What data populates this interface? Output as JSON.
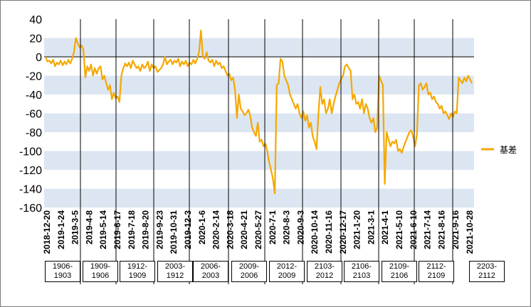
{
  "chart_data": {
    "type": "line",
    "title": "",
    "xlabel": "",
    "ylabel": "",
    "ylim": [
      -160,
      40
    ],
    "yticks": [
      40,
      20,
      0,
      -20,
      -40,
      -60,
      -80,
      -100,
      -120,
      -140,
      -160
    ],
    "grid": "alternating horizontal bands",
    "legend_position": "right",
    "x_tick_labels": [
      "2018-12-20",
      "2019-1-24",
      "2019-3-5",
      "2019-4-8",
      "2019-5-14",
      "2019-6-17",
      "2019-7-18",
      "2019-8-20",
      "2019-9-23",
      "2019-10-31",
      "2019-12-3",
      "2020-1-6",
      "2020-2-14",
      "2020-3-18",
      "2020-4-21",
      "2020-5-27",
      "2020-7-1",
      "2020-8-3",
      "2020-9-3",
      "2020-10-14",
      "2020-11-16",
      "2020-12-17",
      "2021-1-20",
      "2021-3-1",
      "2021-4-1",
      "2021-5-10",
      "2021-6-10",
      "2021-7-14",
      "2021-8-16",
      "2021-9-16",
      "2021-10-28"
    ],
    "contract_labels": [
      "1906-\n1903",
      "1909-\n1906",
      "1912-\n1909",
      "2003-\n1912",
      "2006-\n2003",
      "2009-\n2006",
      "2012-\n2009",
      "2103-\n2012",
      "2106-\n2103",
      "2109-\n2106",
      "2112-\n2109",
      "2203-\n2112"
    ],
    "series": [
      {
        "name": "基差",
        "color": "#F5A800",
        "values": [
          0,
          -5,
          -4,
          -7,
          -3,
          -10,
          -6,
          -8,
          -4,
          -9,
          -5,
          -8,
          -3,
          -7,
          -2,
          5,
          20,
          14,
          10,
          12,
          8,
          -22,
          -10,
          -15,
          -8,
          -20,
          -12,
          -18,
          -12,
          -10,
          -24,
          -20,
          -28,
          -35,
          -30,
          -45,
          -38,
          -44,
          -42,
          -48,
          -20,
          -12,
          -7,
          -10,
          -6,
          -12,
          -4,
          -8,
          -12,
          -10,
          -15,
          -8,
          -12,
          -10,
          -5,
          -15,
          -8,
          -12,
          -10,
          -16,
          -14,
          -12,
          -8,
          0,
          -8,
          -5,
          -3,
          -8,
          -4,
          -6,
          -2,
          -10,
          -5,
          -8,
          -4,
          -10,
          -6,
          -8,
          -3,
          -7,
          -2,
          5,
          28,
          0,
          -2,
          5,
          -4,
          -6,
          -3,
          -10,
          -4,
          -8,
          -6,
          -12,
          -10,
          -15,
          -20,
          -18,
          -25,
          -22,
          -35,
          -65,
          -40,
          -55,
          -58,
          -62,
          -60,
          -56,
          -62,
          -75,
          -80,
          -84,
          -70,
          -90,
          -88,
          -95,
          -92,
          -100,
          -112,
          -120,
          -130,
          -145,
          -30,
          -28,
          -2,
          -5,
          -20,
          -25,
          -30,
          -40,
          -45,
          -50,
          -55,
          -50,
          -60,
          -65,
          -58,
          -68,
          -62,
          -75,
          -70,
          -85,
          -90,
          -98,
          -60,
          -32,
          -50,
          -45,
          -60,
          -55,
          -45,
          -60,
          -50,
          -42,
          -35,
          -28,
          -24,
          -20,
          -10,
          -8,
          -12,
          -15,
          -45,
          -40,
          -50,
          -48,
          -55,
          -45,
          -60,
          -50,
          -55,
          -65,
          -70,
          -65,
          -80,
          -75,
          -20,
          -25,
          -30,
          -135,
          -80,
          -88,
          -95,
          -90,
          -92,
          -88,
          -100,
          -98,
          -102,
          -95,
          -90,
          -85,
          -80,
          -78,
          -85,
          -95,
          -82,
          -30,
          -28,
          -35,
          -32,
          -28,
          -40,
          -38,
          -45,
          -42,
          -48,
          -50,
          -55,
          -52,
          -60,
          -58,
          -62,
          -66,
          -60,
          -64,
          -58,
          -60,
          -22,
          -25,
          -28,
          -22,
          -26,
          -20,
          -24,
          -28
        ]
      }
    ]
  }
}
